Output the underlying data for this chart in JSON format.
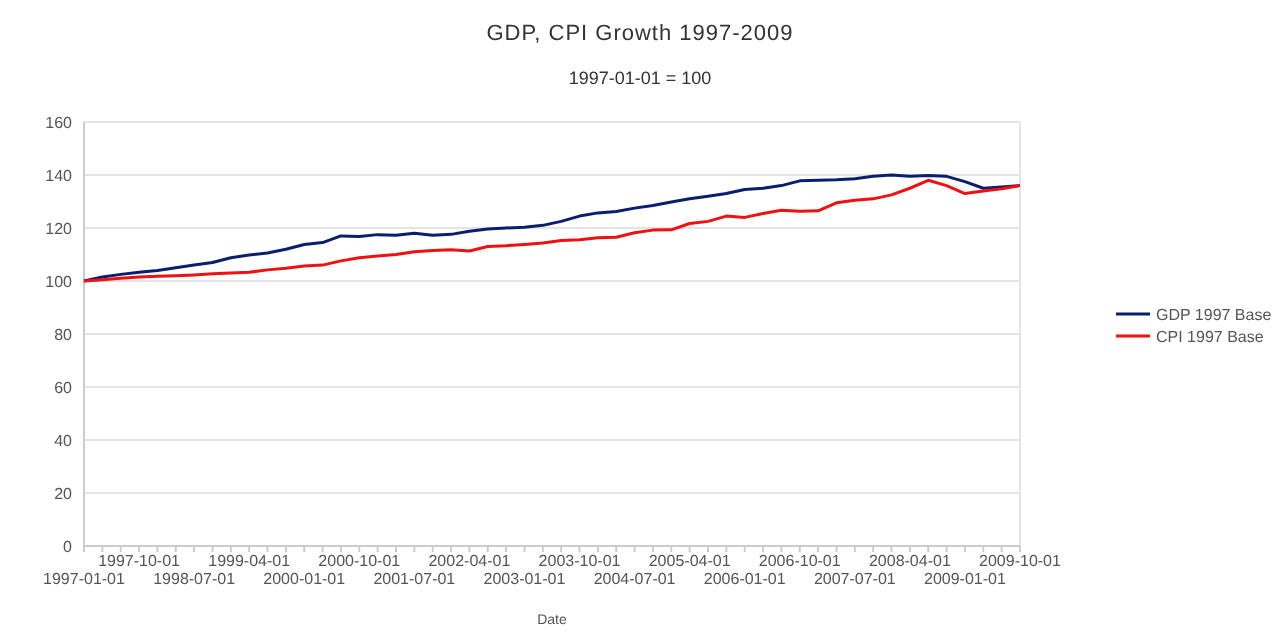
{
  "chart_data": {
    "type": "line",
    "title": "GDP, CPI Growth 1997-2009",
    "subtitle": "1997-01-01 = 100",
    "xlabel": "Date",
    "categories": [
      "1997-01-01",
      null,
      null,
      "1997-10-01",
      null,
      null,
      "1998-07-01",
      null,
      null,
      "1999-04-01",
      null,
      null,
      "2000-01-01",
      null,
      null,
      "2000-10-01",
      null,
      null,
      "2001-07-01",
      null,
      null,
      "2002-04-01",
      null,
      null,
      "2003-01-01",
      null,
      null,
      "2003-10-01",
      null,
      null,
      "2004-07-01",
      null,
      null,
      "2005-04-01",
      null,
      null,
      "2006-01-01",
      null,
      null,
      "2006-10-01",
      null,
      null,
      "2007-07-01",
      null,
      null,
      "2008-04-01",
      null,
      null,
      "2009-01-01",
      null,
      null,
      "2009-10-01"
    ],
    "series": [
      {
        "name": "GDP 1997 Base",
        "color": "#0a1e6e",
        "values": [
          100,
          101.5,
          102.5,
          103.3,
          104,
          105,
          106,
          107,
          108.8,
          109.8,
          110.6,
          112,
          113.8,
          114.5,
          117,
          116.8,
          117.5,
          117.3,
          118,
          117.3,
          117.6,
          118.8,
          119.6,
          120,
          120.3,
          121,
          122.5,
          124.5,
          125.7,
          126.2,
          127.5,
          128.5,
          129.8,
          131,
          132,
          133,
          134.5,
          135,
          136,
          137.8,
          138,
          138.2,
          138.6,
          139.5,
          140,
          139.5,
          139.8,
          139.5,
          137.5,
          135,
          135.5,
          136
        ]
      },
      {
        "name": "CPI 1997 Base",
        "color": "#ee1111",
        "values": [
          100,
          100.5,
          101,
          101.5,
          101.8,
          102,
          102.3,
          102.7,
          103,
          103.3,
          104.2,
          104.8,
          105.7,
          106,
          107.6,
          108.8,
          109.4,
          110,
          111,
          111.5,
          111.8,
          111.3,
          113,
          113.3,
          113.8,
          114.3,
          115.3,
          115.6,
          116.3,
          116.5,
          118.2,
          119.2,
          119.3,
          121.7,
          122.5,
          124.5,
          124,
          125.5,
          126.7,
          126.3,
          126.5,
          129.5,
          130.5,
          131,
          132.5,
          135,
          138,
          136,
          133,
          134,
          134.8,
          136
        ]
      }
    ],
    "ylim": [
      0,
      160
    ],
    "yticks": [
      0,
      20,
      40,
      60,
      80,
      100,
      120,
      140,
      160
    ],
    "grid": "y",
    "legend": "right",
    "marker": "none",
    "line_style": "solid"
  }
}
